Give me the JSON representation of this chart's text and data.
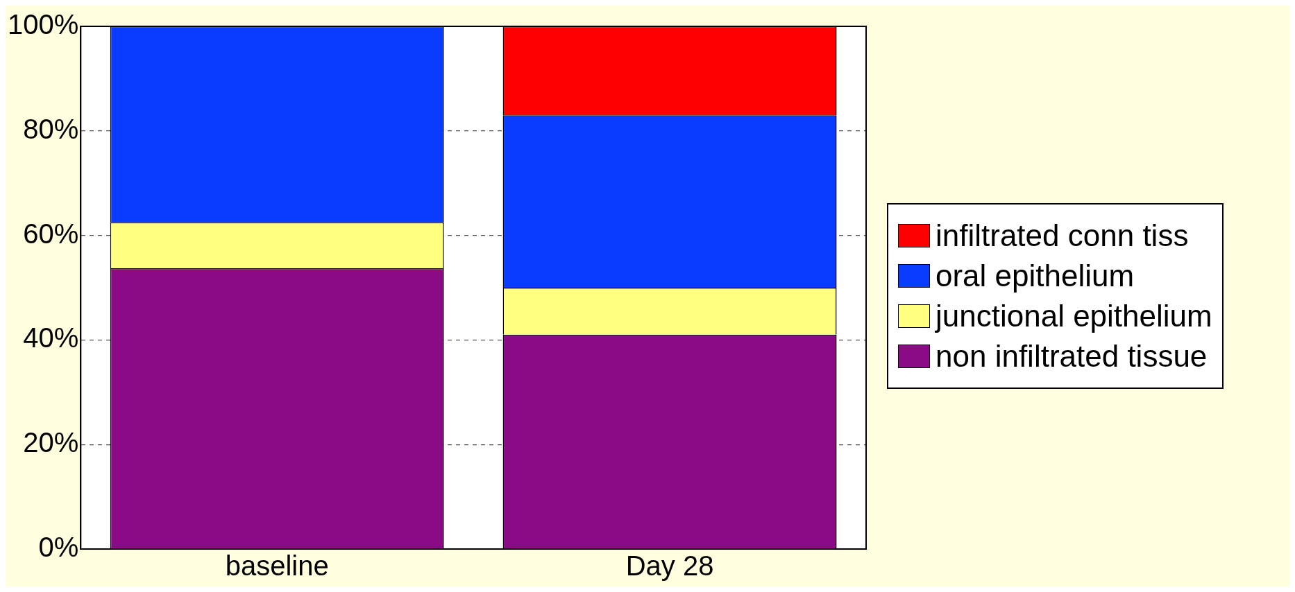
{
  "chart_data": {
    "type": "bar",
    "stacked": true,
    "categories": [
      "baseline",
      "Day 28"
    ],
    "series": [
      {
        "name": "non infiltrated tissue",
        "color": "#8b0a86",
        "values": [
          53.7,
          41
        ]
      },
      {
        "name": "junctional epithelium",
        "color": "#ffff80",
        "values": [
          8.8,
          9
        ]
      },
      {
        "name": "oral epithelium",
        "color": "#0a3cff",
        "values": [
          37.5,
          33
        ]
      },
      {
        "name": "infiltrated conn tiss",
        "color": "#ff0000",
        "values": [
          0,
          17
        ]
      }
    ],
    "ylim": [
      0,
      100
    ],
    "yticks": [
      {
        "value": 0,
        "label": "0%"
      },
      {
        "value": 20,
        "label": "20%"
      },
      {
        "value": 40,
        "label": "40%"
      },
      {
        "value": 60,
        "label": "60%"
      },
      {
        "value": 80,
        "label": "80%"
      },
      {
        "value": 100,
        "label": "100%"
      }
    ],
    "grid": "y",
    "legend": "right"
  }
}
